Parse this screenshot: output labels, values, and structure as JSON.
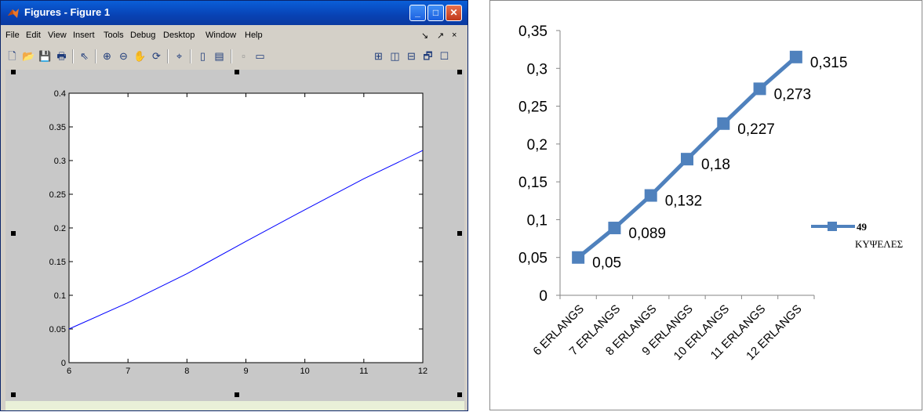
{
  "window": {
    "title": "Figures - Figure 1",
    "controls": {
      "minimize": "_",
      "maximize": "□",
      "close": "✕"
    },
    "menu": [
      "File",
      "Edit",
      "View",
      "Insert",
      "Tools",
      "Debug",
      "Desktop",
      "Window",
      "Help"
    ],
    "menu_right": {
      "dock": "↘",
      "undock": "↗",
      "close": "×"
    },
    "toolbar_icons": [
      "new-file-icon",
      "open-folder-icon",
      "save-icon",
      "print-icon",
      "pointer-icon",
      "zoom-in-icon",
      "zoom-out-icon",
      "pan-hand-icon",
      "rotate-3d-icon",
      "data-cursor-icon",
      "colorbar-icon",
      "legend-icon",
      "hide-plot-tools-icon",
      "show-plot-tools-icon",
      "tile-icon",
      "split-vertical-icon",
      "split-horizontal-icon",
      "float-icon",
      "maximize-icon"
    ]
  },
  "chart_data": [
    {
      "type": "line",
      "x": [
        6,
        7,
        8,
        9,
        10,
        11,
        12
      ],
      "series": [
        {
          "values": [
            0.05,
            0.089,
            0.132,
            0.18,
            0.227,
            0.273,
            0.315
          ],
          "color": "#0000ff"
        }
      ],
      "xlim": [
        6,
        12
      ],
      "ylim": [
        0,
        0.4
      ],
      "xticks": [
        "6",
        "7",
        "8",
        "9",
        "10",
        "11",
        "12"
      ],
      "yticks": [
        "0",
        "0.05",
        "0.1",
        "0.15",
        "0.2",
        "0.25",
        "0.3",
        "0.35",
        "0.4"
      ],
      "grid": false
    },
    {
      "type": "line",
      "categories": [
        "6 ERLANGS",
        "7 ERLANGS",
        "8 ERLANGS",
        "9 ERLANGS",
        "10 ERLANGS",
        "11 ERLANGS",
        "12 ERLANGS"
      ],
      "series": [
        {
          "name": "49 ΚΥΨΕΛΕΣ",
          "values": [
            0.05,
            0.089,
            0.132,
            0.18,
            0.227,
            0.273,
            0.315
          ],
          "color": "#4f81bd",
          "labels": [
            "0,05",
            "0,089",
            "0,132",
            "0,18",
            "0,227",
            "0,273",
            "0,315"
          ]
        }
      ],
      "ylim": [
        0,
        0.35
      ],
      "yticks": [
        "0",
        "0,05",
        "0,1",
        "0,15",
        "0,2",
        "0,25",
        "0,3",
        "0,35"
      ],
      "grid": false,
      "legend": {
        "position": "right",
        "lines": [
          "49",
          "ΚΥΨΕΛΕΣ"
        ]
      }
    }
  ]
}
